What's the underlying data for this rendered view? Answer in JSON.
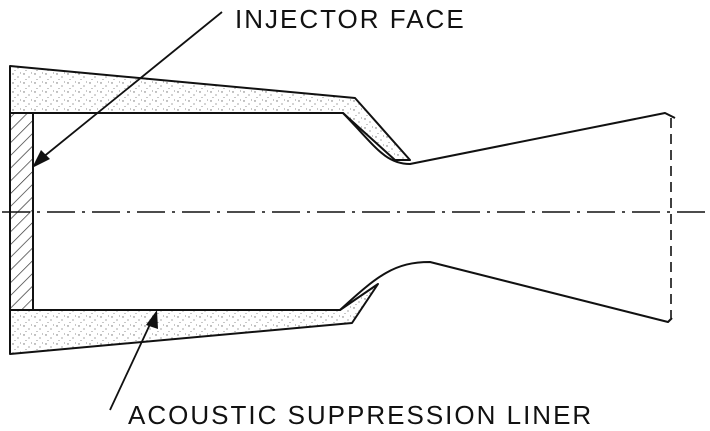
{
  "labels": {
    "injector_face": "INJECTOR FACE",
    "acoustic_liner": "ACOUSTIC SUPPRESSION LINER"
  },
  "colors": {
    "ink": "#111111",
    "paper": "#ffffff",
    "stipple": "#6a6a6a"
  }
}
